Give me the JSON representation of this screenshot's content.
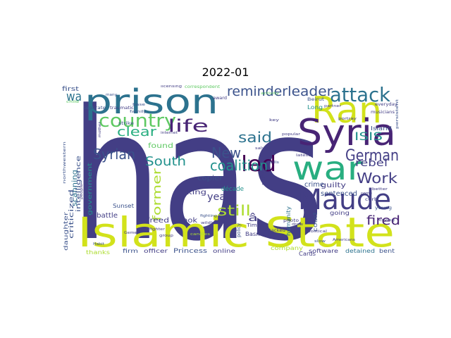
{
  "title": "2022-01",
  "palette": {
    "deep_purple": "#482475",
    "navy": "#433e85",
    "indigo": "#3b528b",
    "teal": "#2c728e",
    "sea": "#21918c",
    "green": "#28ae80",
    "lime": "#5ec962",
    "yellow_green": "#addc30",
    "yellow": "#d2e21b",
    "dark": "#440154"
  },
  "words": [
    {
      "text": "has",
      "color": "#433e85"
    },
    {
      "text": "Islamic State",
      "color": "#d2e21b"
    },
    {
      "text": "prison",
      "color": "#2c728e"
    },
    {
      "text": "Ran",
      "color": "#d2e21b"
    },
    {
      "text": "Syria",
      "color": "#482475"
    },
    {
      "text": "war",
      "color": "#28ae80"
    },
    {
      "text": "Maude",
      "color": "#433e85"
    },
    {
      "text": "attack",
      "color": "#2c728e"
    },
    {
      "text": "country",
      "color": "#5ec962"
    },
    {
      "text": "led",
      "color": "#440154"
    },
    {
      "text": "life",
      "color": "#482475"
    },
    {
      "text": "reminder",
      "color": "#3b528b"
    },
    {
      "text": "leader",
      "color": "#3b528b"
    },
    {
      "text": "said",
      "color": "#2c728e"
    },
    {
      "text": "German",
      "color": "#433e85"
    },
    {
      "text": "ISIS",
      "color": "#21918c"
    },
    {
      "text": "New",
      "color": "#3b528b"
    },
    {
      "text": "coalition",
      "color": "#21918c"
    },
    {
      "text": "South",
      "color": "#21918c"
    },
    {
      "text": "Work",
      "color": "#433e85"
    },
    {
      "text": "Syrian",
      "color": "#3b528b"
    },
    {
      "text": "clear",
      "color": "#28ae80"
    },
    {
      "text": "former",
      "color": "#addc30"
    },
    {
      "text": "rebel",
      "color": "#433e85"
    },
    {
      "text": "fired",
      "color": "#482475"
    },
    {
      "text": "still",
      "color": "#addc30"
    },
    {
      "text": "year",
      "color": "#433e85"
    },
    {
      "text": "wa",
      "color": "#2c728e"
    },
    {
      "text": "king",
      "color": "#433e85"
    },
    {
      "text": "Sunset",
      "color": "#3b528b"
    },
    {
      "text": "scanning",
      "color": "#2c728e"
    },
    {
      "text": "copier",
      "color": "#3b528b"
    },
    {
      "text": "found",
      "color": "#5ec962"
    },
    {
      "text": "guilty",
      "color": "#433e85"
    },
    {
      "text": "sentenced",
      "color": "#3b528b"
    },
    {
      "text": "crime",
      "color": "#3b528b"
    },
    {
      "text": "décade",
      "color": "#21918c"
    },
    {
      "text": "freed",
      "color": "#433e85"
    },
    {
      "text": "book",
      "color": "#433e85"
    },
    {
      "text": "battle",
      "color": "#433e85"
    },
    {
      "text": "government",
      "color": "#21918c"
    },
    {
      "text": "criticized",
      "color": "#3b528b"
    },
    {
      "text": "intelligence",
      "color": "#3b528b"
    },
    {
      "text": "first",
      "color": "#3b528b"
    },
    {
      "text": "daughter",
      "color": "#3b528b"
    },
    {
      "text": "thanks",
      "color": "#addc30"
    },
    {
      "text": "firm",
      "color": "#3b528b"
    },
    {
      "text": "officer",
      "color": "#433e85"
    },
    {
      "text": "Princess",
      "color": "#3b528b"
    },
    {
      "text": "online",
      "color": "#433e85"
    },
    {
      "text": "company",
      "color": "#addc30"
    },
    {
      "text": "Cards",
      "color": "#433e85"
    },
    {
      "text": "software",
      "color": "#433e85"
    },
    {
      "text": "detained",
      "color": "#2c728e"
    },
    {
      "text": "bent",
      "color": "#3b528b"
    },
    {
      "text": "Basmah",
      "color": "#433e85"
    },
    {
      "text": "Island",
      "color": "#3b528b"
    },
    {
      "text": "humanity",
      "color": "#2c728e"
    },
    {
      "text": "going",
      "color": "#433e85"
    },
    {
      "text": "Long",
      "color": "#21918c"
    },
    {
      "text": "court",
      "color": "#3b528b"
    },
    {
      "text": "Times",
      "color": "#433e85"
    },
    {
      "text": "â",
      "color": "#433e85"
    },
    {
      "text": "policy",
      "color": "#3b528b"
    },
    {
      "text": "Beirut",
      "color": "#3b528b"
    },
    {
      "text": "attacked",
      "color": "#433e85"
    },
    {
      "text": "curb",
      "color": "#433e85"
    },
    {
      "text": "young",
      "color": "#3b528b"
    },
    {
      "text": "everyday",
      "color": "#433e85"
    },
    {
      "text": "musicians",
      "color": "#433e85"
    },
    {
      "text": "photo",
      "color": "#433e85"
    },
    {
      "text": "licensing",
      "color": "#433e85"
    },
    {
      "text": "correspondent",
      "color": "#5ec962"
    },
    {
      "text": "separate",
      "color": "#3b528b"
    },
    {
      "text": "traumatic",
      "color": "#433e85"
    },
    {
      "text": "strike",
      "color": "#3b528b"
    },
    {
      "text": "internet",
      "color": "#433e85"
    },
    {
      "text": "candles",
      "color": "#addc30"
    },
    {
      "text": "northwestern",
      "color": "#3b528b"
    },
    {
      "text": "group",
      "color": "#433e85"
    },
    {
      "text": "wildly",
      "color": "#433e85"
    },
    {
      "text": "fighter",
      "color": "#433e85"
    },
    {
      "text": "fighting",
      "color": "#3b528b"
    },
    {
      "text": "award",
      "color": "#433e85"
    },
    {
      "text": "key",
      "color": "#433e85"
    },
    {
      "text": "popular",
      "color": "#433e85"
    },
    {
      "text": "better",
      "color": "#433e85"
    },
    {
      "text": "activity",
      "color": "#5ec962"
    },
    {
      "text": "base",
      "color": "#3b528b"
    },
    {
      "text": "family",
      "color": "#3b528b"
    },
    {
      "text": "child",
      "color": "#5ec962"
    },
    {
      "text": "backed",
      "color": "#433e85"
    },
    {
      "text": "threat",
      "color": "#433e85"
    },
    {
      "text": "people",
      "color": "#433e85"
    },
    {
      "text": "Americans",
      "color": "#433e85"
    },
    {
      "text": "Gemen",
      "color": "#433e85"
    },
    {
      "text": "crying",
      "color": "#433e85"
    },
    {
      "text": "portray",
      "color": "#433e85"
    },
    {
      "text": "latest",
      "color": "#433e85"
    },
    {
      "text": "salve",
      "color": "#433e85"
    },
    {
      "text": "persistent",
      "color": "#3b528b"
    },
    {
      "text": "draw",
      "color": "#433e85"
    },
    {
      "text": "Habit",
      "color": "#3b528b"
    },
    {
      "text": "political",
      "color": "#433e85"
    },
    {
      "text": "partner",
      "color": "#433e85"
    },
    {
      "text": "come",
      "color": "#433e85"
    },
    {
      "text": "mother",
      "color": "#433e85"
    },
    {
      "text": "night",
      "color": "#433e85"
    },
    {
      "text": "many",
      "color": "#3b528b"
    },
    {
      "text": "dolls",
      "color": "#3b528b"
    },
    {
      "text": "slow",
      "color": "#3b528b"
    }
  ]
}
